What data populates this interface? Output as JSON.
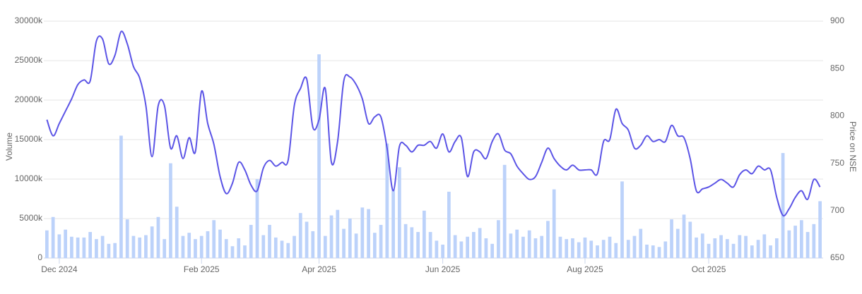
{
  "chart_data": {
    "type": "combo",
    "y_label": "Volume",
    "y2_label": "Price on NSE",
    "categories": [
      null,
      null,
      "Dec 2024",
      null,
      null,
      null,
      null,
      null,
      null,
      null,
      null,
      null,
      null,
      null,
      null,
      null,
      null,
      null,
      null,
      null,
      null,
      null,
      null,
      null,
      null,
      "Feb 2025",
      null,
      null,
      null,
      null,
      null,
      null,
      null,
      null,
      null,
      null,
      null,
      null,
      null,
      null,
      null,
      null,
      null,
      null,
      "Apr 2025",
      null,
      null,
      null,
      null,
      null,
      null,
      null,
      null,
      null,
      null,
      null,
      null,
      null,
      null,
      null,
      null,
      null,
      null,
      null,
      "Jun 2025",
      null,
      null,
      null,
      null,
      null,
      null,
      null,
      null,
      null,
      null,
      null,
      null,
      null,
      null,
      null,
      null,
      null,
      null,
      null,
      null,
      null,
      null,
      "Aug 2025",
      null,
      null,
      null,
      null,
      null,
      null,
      null,
      null,
      null,
      null,
      null,
      null,
      null,
      null,
      null,
      null,
      null,
      null,
      null,
      "Oct 2025",
      null,
      null,
      null,
      null,
      null,
      null,
      null,
      null,
      null,
      null,
      null,
      null,
      null,
      null,
      null,
      null,
      null,
      null
    ],
    "series": [
      {
        "type": "bar",
        "color": "#bcd2fa",
        "values": [
          3500,
          5200,
          3000,
          3600,
          2700,
          2600,
          2600,
          3300,
          2400,
          2800,
          1800,
          1900,
          15500,
          4900,
          2800,
          2600,
          2900,
          4000,
          5200,
          2400,
          12000,
          6500,
          2800,
          3200,
          2400,
          2800,
          3400,
          4800,
          3600,
          2400,
          1500,
          2500,
          1600,
          4200,
          10000,
          2900,
          4200,
          2600,
          2200,
          1900,
          2800,
          5700,
          4600,
          3400,
          25800,
          2800,
          5400,
          6100,
          3700,
          5000,
          3100,
          6400,
          6200,
          3200,
          4200,
          14500,
          8700,
          11500,
          4300,
          3900,
          3300,
          6000,
          3300,
          2200,
          1700,
          8400,
          2900,
          2100,
          2700,
          3300,
          3800,
          2500,
          1800,
          4800,
          11800,
          3100,
          3600,
          2700,
          3500,
          2500,
          2800,
          4700,
          8700,
          2700,
          2400,
          2500,
          2000,
          2600,
          2200,
          1600,
          2300,
          2700,
          1900,
          9700,
          2300,
          2800,
          3700,
          1700,
          1600,
          1400,
          2100,
          4900,
          3700,
          5500,
          4600,
          2600,
          3100,
          1800,
          2500,
          2900,
          2400,
          1800,
          2900,
          2800,
          1600,
          2300,
          3000,
          1600,
          2500,
          13300,
          3500,
          4100,
          4800,
          3300,
          4300,
          7200
        ]
      },
      {
        "type": "line",
        "axis": "y2",
        "color": "#5b54e6",
        "values": [
          796,
          779,
          792,
          805,
          818,
          833,
          838,
          837,
          879,
          881,
          855,
          864,
          889,
          876,
          852,
          840,
          811,
          757,
          811,
          811,
          766,
          779,
          755,
          777,
          762,
          826,
          792,
          770,
          736,
          718,
          729,
          751,
          743,
          727,
          721,
          745,
          753,
          747,
          751,
          753,
          811,
          829,
          839,
          788,
          796,
          829,
          751,
          773,
          837,
          841,
          833,
          818,
          792,
          799,
          799,
          766,
          721,
          768,
          769,
          762,
          769,
          769,
          773,
          766,
          781,
          762,
          773,
          777,
          736,
          762,
          762,
          755,
          773,
          781,
          764,
          760,
          747,
          739,
          733,
          736,
          751,
          766,
          755,
          747,
          743,
          748,
          743,
          743,
          743,
          739,
          773,
          775,
          807,
          792,
          785,
          766,
          769,
          779,
          773,
          775,
          773,
          790,
          779,
          777,
          755,
          721,
          723,
          725,
          729,
          733,
          729,
          725,
          738,
          743,
          739,
          747,
          743,
          743,
          714,
          695,
          702,
          714,
          721,
          712,
          733,
          725
        ]
      }
    ],
    "ylim": [
      0,
      30000
    ],
    "yticks": [
      0,
      {
        "value": 5000,
        "label": "5000k"
      },
      {
        "value": 10000,
        "label": "10000k"
      },
      {
        "value": 15000,
        "label": "15000k"
      },
      {
        "value": 20000,
        "label": "20000k"
      },
      {
        "value": 25000,
        "label": "25000k"
      },
      {
        "value": 30000,
        "label": "30000k"
      }
    ],
    "y2lim": [
      650,
      900
    ],
    "y2ticks": [
      650,
      700,
      750,
      800,
      850,
      900
    ],
    "grid": true
  }
}
